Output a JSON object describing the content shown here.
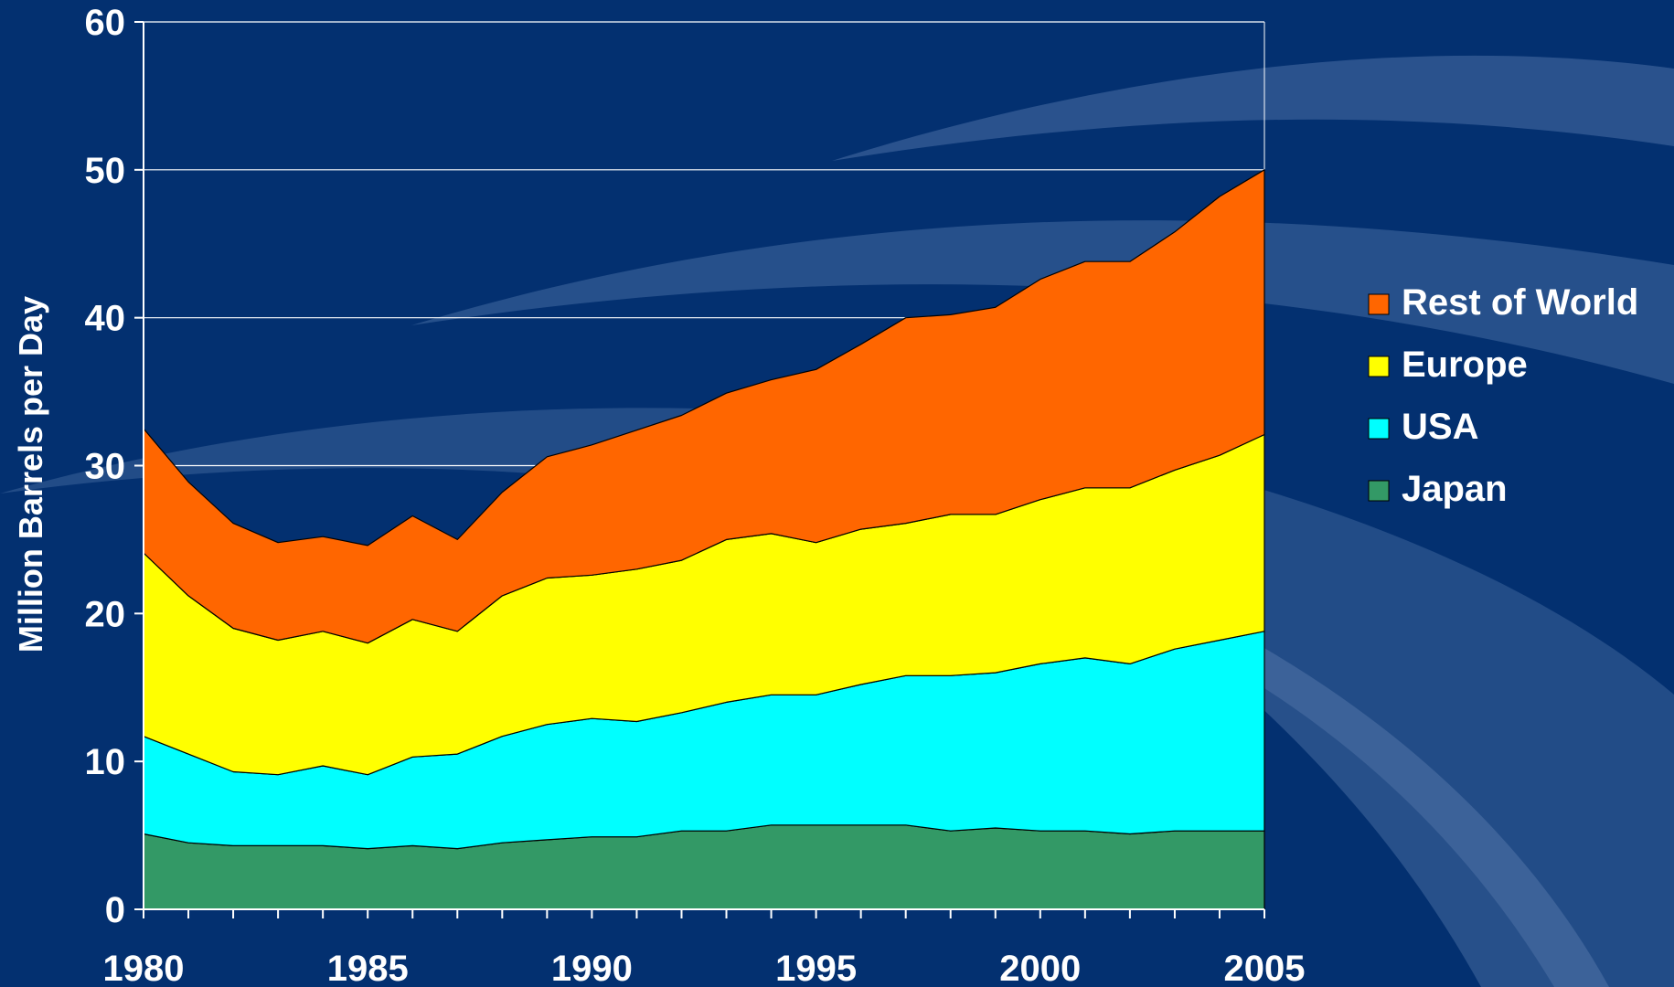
{
  "colors": {
    "background": "#033070",
    "swoosh": "#4a6fa5",
    "japan": "#339966",
    "usa": "#00ffff",
    "europe": "#ffff00",
    "rest_of_world": "#ff6600",
    "axis": "#ffffff"
  },
  "chart_data": {
    "type": "area",
    "stacked": true,
    "title": "",
    "xlabel": "",
    "ylabel": "Million Barrels per Day",
    "xlim": [
      1980,
      2005
    ],
    "ylim": [
      0,
      60
    ],
    "x_ticks": [
      1980,
      1985,
      1990,
      1995,
      2000,
      2005
    ],
    "y_ticks": [
      0,
      10,
      20,
      30,
      40,
      50,
      60
    ],
    "grid": "horizontal",
    "legend_position": "right",
    "x": [
      1980,
      1981,
      1982,
      1983,
      1984,
      1985,
      1986,
      1987,
      1988,
      1989,
      1990,
      1991,
      1992,
      1993,
      1994,
      1995,
      1996,
      1997,
      1998,
      1999,
      2000,
      2001,
      2002,
      2003,
      2004,
      2005
    ],
    "series": [
      {
        "name": "Japan",
        "color": "#339966",
        "values": [
          5.1,
          4.5,
          4.3,
          4.3,
          4.3,
          4.1,
          4.3,
          4.1,
          4.5,
          4.7,
          4.9,
          4.9,
          5.3,
          5.3,
          5.7,
          5.7,
          5.7,
          5.7,
          5.3,
          5.5,
          5.3,
          5.3,
          5.1,
          5.3,
          5.3,
          5.3
        ]
      },
      {
        "name": "USA",
        "color": "#00ffff",
        "values": [
          6.6,
          6.0,
          5.0,
          4.8,
          5.4,
          5.0,
          6.0,
          6.4,
          7.2,
          7.8,
          8.0,
          7.8,
          8.0,
          8.7,
          8.8,
          8.8,
          9.5,
          10.1,
          10.5,
          10.5,
          11.3,
          11.7,
          11.5,
          12.3,
          12.9,
          13.5
        ]
      },
      {
        "name": "Europe",
        "color": "#ffff00",
        "values": [
          12.4,
          10.7,
          9.7,
          9.1,
          9.1,
          8.9,
          9.3,
          8.3,
          9.5,
          9.9,
          9.7,
          10.3,
          10.3,
          11.0,
          10.9,
          10.3,
          10.5,
          10.3,
          10.9,
          10.7,
          11.1,
          11.5,
          11.9,
          12.1,
          12.5,
          13.3
        ]
      },
      {
        "name": "Rest of World",
        "color": "#ff6600",
        "values": [
          8.4,
          7.7,
          7.1,
          6.6,
          6.4,
          6.6,
          7.0,
          6.2,
          7.0,
          8.2,
          8.8,
          9.4,
          9.8,
          9.9,
          10.4,
          11.7,
          12.5,
          13.9,
          13.5,
          14.0,
          14.9,
          15.3,
          15.3,
          16.1,
          17.5,
          17.9
        ]
      }
    ],
    "legend_order": [
      "Rest of World",
      "Europe",
      "USA",
      "Japan"
    ]
  }
}
